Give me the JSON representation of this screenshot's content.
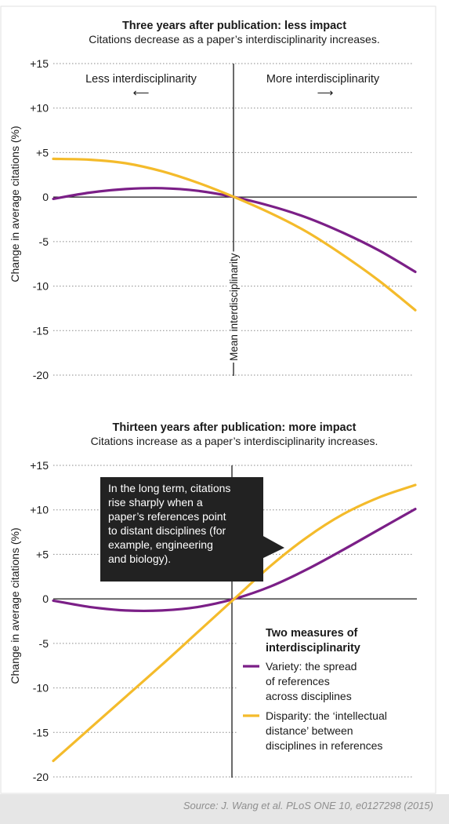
{
  "source": "Source: J. Wang et al. PLoS ONE 10, e0127298 (2015)",
  "chart_data": [
    {
      "type": "line",
      "title": "Three years after publication: less impact",
      "subtitle": "Citations decrease as a paper’s interdisciplinarity increases.",
      "ylabel": "Change in average citations (%)",
      "xlabel": "",
      "ylim": [
        -20,
        15
      ],
      "yticks": [
        15,
        10,
        5,
        0,
        -5,
        -10,
        -15,
        -20
      ],
      "ytick_labels": [
        "+15",
        "+10",
        "+5",
        "0",
        "-5",
        "-10",
        "-15",
        "-20"
      ],
      "x_range": [
        -1,
        1
      ],
      "grid": true,
      "mean_line_label": "Mean interdisciplinarity",
      "left_direction_label": "Less interdisciplinarity",
      "right_direction_label": "More interdisciplinarity",
      "left_arrow": "⟵",
      "right_arrow": "⟶",
      "series": [
        {
          "color": "#7b1f87",
          "x": [
            -1,
            -0.8,
            -0.6,
            -0.4,
            -0.2,
            0,
            0.2,
            0.4,
            0.6,
            0.8,
            1
          ],
          "values": [
            -0.2,
            0.5,
            0.9,
            1.0,
            0.7,
            0,
            -1.0,
            -2.3,
            -4.0,
            -6.0,
            -8.4
          ]
        },
        {
          "color": "#f4bb2b",
          "x": [
            -1,
            -0.8,
            -0.6,
            -0.4,
            -0.2,
            0,
            0.2,
            0.4,
            0.6,
            0.8,
            1
          ],
          "values": [
            4.3,
            4.2,
            3.8,
            2.9,
            1.6,
            0,
            -1.8,
            -3.9,
            -6.5,
            -9.4,
            -12.7
          ]
        }
      ]
    },
    {
      "type": "line",
      "title": "Thirteen years after publication: more impact",
      "subtitle": "Citations increase as a paper’s interdisciplinarity increases.",
      "ylabel": "Change in average citations (%)",
      "xlabel": "",
      "ylim": [
        -20,
        15
      ],
      "yticks": [
        15,
        10,
        5,
        0,
        -5,
        -10,
        -15,
        -20
      ],
      "ytick_labels": [
        "+15",
        "+10",
        "+5",
        "0",
        "-5",
        "-10",
        "-15",
        "-20"
      ],
      "x_range": [
        -1,
        1
      ],
      "grid": true,
      "callout": [
        "In the long term, citations",
        "rise sharply when a",
        "paper’s references point",
        "to distant disciplines (for",
        "example, engineering",
        "and biology)."
      ],
      "legend_title": [
        "Two measures of",
        "interdisciplinarity"
      ],
      "legend_position": "bottom-right",
      "series": [
        {
          "color": "#7b1f87",
          "label": [
            "Variety: the spread",
            "of references",
            "across disciplines"
          ],
          "x": [
            -1,
            -0.8,
            -0.6,
            -0.4,
            -0.2,
            0,
            0.2,
            0.4,
            0.6,
            0.8,
            1
          ],
          "values": [
            -0.2,
            -0.9,
            -1.3,
            -1.3,
            -0.9,
            0,
            1.4,
            3.3,
            5.5,
            7.8,
            10.1
          ]
        },
        {
          "color": "#f4bb2b",
          "label": [
            "Disparity: the ‘intellectual",
            "distance’ between",
            "disciplines in references"
          ],
          "x": [
            -1,
            -0.8,
            -0.6,
            -0.4,
            -0.2,
            0,
            0.2,
            0.4,
            0.6,
            0.8,
            1
          ],
          "values": [
            -18.2,
            -14.6,
            -11.0,
            -7.4,
            -3.7,
            0,
            3.7,
            6.9,
            9.5,
            11.4,
            12.8
          ]
        }
      ]
    }
  ]
}
